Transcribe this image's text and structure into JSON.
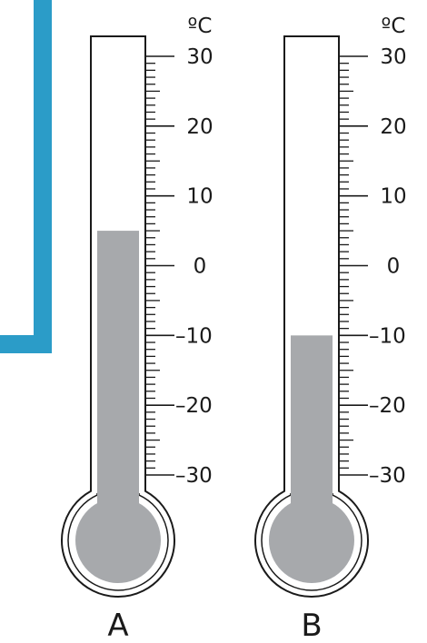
{
  "colors": {
    "accent_frame": "#2b9cc8",
    "mercury": "#a7a9ac",
    "outline": "#1a1a1a",
    "tube_fill": "#ffffff"
  },
  "scale": {
    "min": -30,
    "max": 30,
    "major_step": 10,
    "minor_step": 1
  },
  "thermometers": [
    {
      "label": "A",
      "unit": "ºC",
      "reading": 5,
      "tick_labels": [
        "30",
        "20",
        "10",
        "0",
        "–10",
        "–20",
        "–30"
      ]
    },
    {
      "label": "B",
      "unit": "ºC",
      "reading": -10,
      "tick_labels": [
        "30",
        "20",
        "10",
        "0",
        "–10",
        "–20",
        "–30"
      ]
    }
  ]
}
